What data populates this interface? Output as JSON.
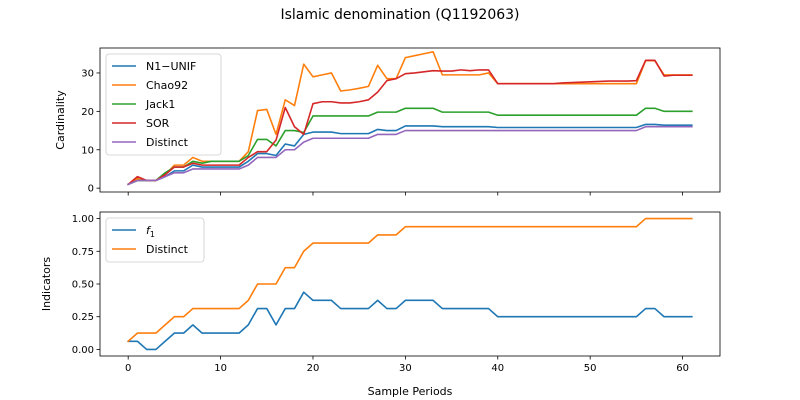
{
  "title": "Islamic denomination (Q1192063)",
  "colors": {
    "c0": "#1f77b4",
    "c1": "#ff7f0e",
    "c2": "#2ca02c",
    "c3": "#d62728",
    "c4": "#9467bd"
  },
  "chart_data": [
    {
      "type": "line",
      "title": "",
      "xlabel": "",
      "ylabel": "Cardinality",
      "xlim": [
        -3.05,
        64.05
      ],
      "ylim": [
        -1,
        36.5
      ],
      "xticks": [
        0,
        10,
        20,
        30,
        40,
        50,
        60
      ],
      "xtick_labels": [],
      "yticks": [
        0,
        10,
        20,
        30
      ],
      "ytick_labels": [
        "0",
        "10",
        "20",
        "30"
      ],
      "legend_position": "upper-left",
      "series": [
        {
          "name": "N1−UNIF",
          "color": "#1f77b4",
          "x": [
            0,
            1,
            2,
            3,
            4,
            5,
            6,
            7,
            8,
            9,
            10,
            11,
            12,
            13,
            14,
            15,
            16,
            17,
            18,
            19,
            20,
            21,
            22,
            23,
            24,
            25,
            26,
            27,
            28,
            29,
            30,
            31,
            32,
            33,
            34,
            35,
            36,
            37,
            38,
            39,
            40,
            41,
            42,
            43,
            44,
            45,
            46,
            47,
            48,
            49,
            50,
            51,
            52,
            53,
            54,
            55,
            56,
            57,
            58,
            59,
            60,
            61
          ],
          "values": [
            1,
            2,
            2,
            2,
            3,
            4.5,
            4.5,
            6,
            5.5,
            5.5,
            5.5,
            5.5,
            5.5,
            7,
            9,
            9,
            8.5,
            11.5,
            11,
            14,
            14.6,
            14.6,
            14.6,
            14.2,
            14.2,
            14.2,
            14.2,
            15.3,
            15,
            15,
            16.2,
            16.2,
            16.2,
            16.2,
            16,
            16,
            16,
            16,
            16,
            16,
            15.8,
            15.8,
            15.8,
            15.8,
            15.8,
            15.8,
            15.8,
            15.8,
            15.8,
            15.8,
            15.8,
            15.8,
            15.8,
            15.8,
            15.8,
            15.8,
            16.6,
            16.6,
            16.4,
            16.4,
            16.4,
            16.4
          ]
        },
        {
          "name": "Chao92",
          "color": "#ff7f0e",
          "x": [
            0,
            1,
            2,
            3,
            4,
            5,
            6,
            7,
            8,
            9,
            10,
            11,
            12,
            13,
            14,
            15,
            16,
            17,
            18,
            19,
            20,
            21,
            22,
            23,
            24,
            25,
            26,
            27,
            28,
            29,
            30,
            31,
            32,
            33,
            34,
            35,
            36,
            37,
            38,
            39,
            40,
            41,
            42,
            43,
            44,
            45,
            46,
            47,
            48,
            49,
            50,
            51,
            52,
            53,
            54,
            55,
            56,
            57,
            58,
            59,
            60,
            61
          ],
          "values": [
            1,
            2.5,
            2,
            2,
            3.5,
            6,
            6,
            8,
            7,
            7,
            7,
            7,
            7,
            9.5,
            20.2,
            20.5,
            14,
            23,
            21.5,
            32.3,
            29,
            29.5,
            30,
            25.3,
            25.6,
            26,
            26.5,
            32,
            28.5,
            28.5,
            34,
            34.5,
            35,
            35.5,
            29.5,
            29.5,
            29.5,
            29.5,
            29.5,
            30,
            27.2,
            27.2,
            27.2,
            27.2,
            27.2,
            27.2,
            27.2,
            27.2,
            27.2,
            27.2,
            27.2,
            27.2,
            27.2,
            27.2,
            27.2,
            27.2,
            33.2,
            33.2,
            29.5,
            29.5,
            29.5,
            29.5
          ]
        },
        {
          "name": "Jack1",
          "color": "#2ca02c",
          "x": [
            0,
            1,
            2,
            3,
            4,
            5,
            6,
            7,
            8,
            9,
            10,
            11,
            12,
            13,
            14,
            15,
            16,
            17,
            18,
            19,
            20,
            21,
            22,
            23,
            24,
            25,
            26,
            27,
            28,
            29,
            30,
            31,
            32,
            33,
            34,
            35,
            36,
            37,
            38,
            39,
            40,
            41,
            42,
            43,
            44,
            45,
            46,
            47,
            48,
            49,
            50,
            51,
            52,
            53,
            54,
            55,
            56,
            57,
            58,
            59,
            60,
            61
          ],
          "values": [
            1,
            2,
            2,
            2,
            4,
            5.5,
            5.5,
            7,
            6.5,
            7,
            7,
            7,
            7,
            8.5,
            12.7,
            12.7,
            11,
            15,
            15,
            14.5,
            18.8,
            18.8,
            18.8,
            18.8,
            18.8,
            18.8,
            18.8,
            19.8,
            19.8,
            19.8,
            20.8,
            20.8,
            20.8,
            20.8,
            19.8,
            19.8,
            19.8,
            19.8,
            19.8,
            19.8,
            19,
            19,
            19,
            19,
            19,
            19,
            19,
            19,
            19,
            19,
            19,
            19,
            19,
            19,
            19,
            19,
            20.8,
            20.8,
            20,
            20,
            20,
            20
          ]
        },
        {
          "name": "SOR",
          "color": "#d62728",
          "x": [
            0,
            1,
            2,
            3,
            4,
            5,
            6,
            7,
            8,
            9,
            10,
            11,
            12,
            13,
            14,
            15,
            16,
            17,
            18,
            19,
            20,
            21,
            22,
            23,
            24,
            25,
            26,
            27,
            28,
            29,
            30,
            31,
            32,
            33,
            34,
            35,
            36,
            37,
            38,
            39,
            40,
            41,
            42,
            43,
            44,
            45,
            46,
            47,
            48,
            49,
            50,
            51,
            52,
            53,
            54,
            55,
            56,
            57,
            58,
            59,
            60,
            61
          ],
          "values": [
            1,
            3,
            2,
            2,
            3.5,
            5.5,
            5.5,
            6.5,
            6,
            6,
            6,
            6,
            6,
            8,
            9.5,
            9.5,
            12.5,
            21,
            16,
            14,
            22,
            22.5,
            22.5,
            22.2,
            22.2,
            22.5,
            23,
            25,
            28,
            28.5,
            29.8,
            30,
            30.3,
            30.6,
            30.5,
            30.5,
            30.8,
            30.6,
            30.8,
            30.8,
            27.2,
            27.2,
            27.2,
            27.2,
            27.2,
            27.2,
            27.2,
            27.4,
            27.5,
            27.6,
            27.7,
            27.8,
            27.9,
            27.9,
            27.9,
            28,
            33.3,
            33.3,
            29.2,
            29.4,
            29.4,
            29.4
          ]
        },
        {
          "name": "Distinct",
          "color": "#9467bd",
          "x": [
            0,
            1,
            2,
            3,
            4,
            5,
            6,
            7,
            8,
            9,
            10,
            11,
            12,
            13,
            14,
            15,
            16,
            17,
            18,
            19,
            20,
            21,
            22,
            23,
            24,
            25,
            26,
            27,
            28,
            29,
            30,
            31,
            32,
            33,
            34,
            35,
            36,
            37,
            38,
            39,
            40,
            41,
            42,
            43,
            44,
            45,
            46,
            47,
            48,
            49,
            50,
            51,
            52,
            53,
            54,
            55,
            56,
            57,
            58,
            59,
            60,
            61
          ],
          "values": [
            1,
            2,
            2,
            2,
            3,
            4,
            4,
            5,
            5,
            5,
            5,
            5,
            5,
            6,
            8,
            8,
            8,
            10,
            10,
            12,
            13,
            13,
            13,
            13,
            13,
            13,
            13,
            14,
            14,
            14,
            15,
            15,
            15,
            15,
            15,
            15,
            15,
            15,
            15,
            15,
            15,
            15,
            15,
            15,
            15,
            15,
            15,
            15,
            15,
            15,
            15,
            15,
            15,
            15,
            15,
            15,
            16,
            16,
            16,
            16,
            16,
            16
          ]
        }
      ]
    },
    {
      "type": "line",
      "title": "",
      "xlabel": "Sample Periods",
      "ylabel": "Indicators",
      "xlim": [
        -3.05,
        64.05
      ],
      "ylim": [
        -0.05,
        1.05
      ],
      "xticks": [
        0,
        10,
        20,
        30,
        40,
        50,
        60
      ],
      "xtick_labels": [
        "0",
        "10",
        "20",
        "30",
        "40",
        "50",
        "60"
      ],
      "yticks": [
        0,
        0.25,
        0.5,
        0.75,
        1.0
      ],
      "ytick_labels": [
        "0.00",
        "0.25",
        "0.50",
        "0.75",
        "1.00"
      ],
      "legend_position": "upper-left",
      "series": [
        {
          "name": "f",
          "subscript": "1",
          "color": "#1f77b4",
          "x": [
            0,
            1,
            2,
            3,
            4,
            5,
            6,
            7,
            8,
            9,
            10,
            11,
            12,
            13,
            14,
            15,
            16,
            17,
            18,
            19,
            20,
            21,
            22,
            23,
            24,
            25,
            26,
            27,
            28,
            29,
            30,
            31,
            32,
            33,
            34,
            35,
            36,
            37,
            38,
            39,
            40,
            41,
            42,
            43,
            44,
            45,
            46,
            47,
            48,
            49,
            50,
            51,
            52,
            53,
            54,
            55,
            56,
            57,
            58,
            59,
            60,
            61
          ],
          "values": [
            0.0625,
            0.0625,
            0,
            0,
            0.0625,
            0.125,
            0.125,
            0.1875,
            0.125,
            0.125,
            0.125,
            0.125,
            0.125,
            0.1875,
            0.3125,
            0.3125,
            0.1875,
            0.3125,
            0.3125,
            0.4375,
            0.375,
            0.375,
            0.375,
            0.3125,
            0.3125,
            0.3125,
            0.3125,
            0.375,
            0.3125,
            0.3125,
            0.375,
            0.375,
            0.375,
            0.375,
            0.3125,
            0.3125,
            0.3125,
            0.3125,
            0.3125,
            0.3125,
            0.25,
            0.25,
            0.25,
            0.25,
            0.25,
            0.25,
            0.25,
            0.25,
            0.25,
            0.25,
            0.25,
            0.25,
            0.25,
            0.25,
            0.25,
            0.25,
            0.3125,
            0.3125,
            0.25,
            0.25,
            0.25,
            0.25
          ]
        },
        {
          "name": "Distinct",
          "color": "#ff7f0e",
          "x": [
            0,
            1,
            2,
            3,
            4,
            5,
            6,
            7,
            8,
            9,
            10,
            11,
            12,
            13,
            14,
            15,
            16,
            17,
            18,
            19,
            20,
            21,
            22,
            23,
            24,
            25,
            26,
            27,
            28,
            29,
            30,
            31,
            32,
            33,
            34,
            35,
            36,
            37,
            38,
            39,
            40,
            41,
            42,
            43,
            44,
            45,
            46,
            47,
            48,
            49,
            50,
            51,
            52,
            53,
            54,
            55,
            56,
            57,
            58,
            59,
            60,
            61
          ],
          "values": [
            0.0625,
            0.125,
            0.125,
            0.125,
            0.1875,
            0.25,
            0.25,
            0.3125,
            0.3125,
            0.3125,
            0.3125,
            0.3125,
            0.3125,
            0.375,
            0.5,
            0.5,
            0.5,
            0.625,
            0.625,
            0.75,
            0.8125,
            0.8125,
            0.8125,
            0.8125,
            0.8125,
            0.8125,
            0.8125,
            0.875,
            0.875,
            0.875,
            0.9375,
            0.9375,
            0.9375,
            0.9375,
            0.9375,
            0.9375,
            0.9375,
            0.9375,
            0.9375,
            0.9375,
            0.9375,
            0.9375,
            0.9375,
            0.9375,
            0.9375,
            0.9375,
            0.9375,
            0.9375,
            0.9375,
            0.9375,
            0.9375,
            0.9375,
            0.9375,
            0.9375,
            0.9375,
            0.9375,
            1,
            1,
            1,
            1,
            1,
            1
          ]
        }
      ]
    }
  ]
}
